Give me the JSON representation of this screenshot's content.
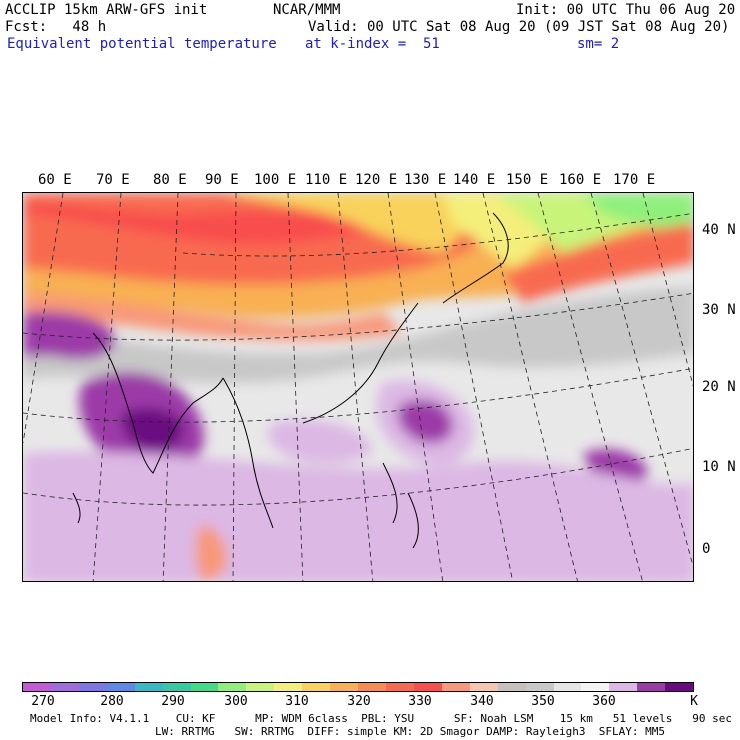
{
  "header": {
    "line1_left": "ACCLIP 15km ARW-GFS init",
    "line1_center": "NCAR/MMM",
    "line1_right": "Init: 00 UTC Thu 06 Aug 20",
    "line2_left": "Fcst:   48 h",
    "line2_right": "Valid: 00 UTC Sat 08 Aug 20 (09 JST Sat 08 Aug 20)",
    "line3_left": "Equivalent potential temperature",
    "line3_center": "at k-index =  51",
    "line3_right": "sm= 2"
  },
  "map": {
    "longitude_labels": [
      "60 E",
      "70 E",
      "80 E",
      "90 E",
      "100 E",
      "110 E",
      "120 E",
      "130 E",
      "140 E",
      "150 E",
      "160 E",
      "170 E"
    ],
    "latitude_labels": [
      "40 N",
      "30 N",
      "20 N",
      "10 N",
      "0"
    ]
  },
  "colorbar": {
    "colors": [
      "#c35ad6",
      "#a06ddc",
      "#7d76e6",
      "#5c8ae8",
      "#37b9c8",
      "#35c9a6",
      "#3fdc8a",
      "#8ef07a",
      "#c8f47a",
      "#f4ef7a",
      "#f8d25a",
      "#f8b052",
      "#f88c50",
      "#f86a50",
      "#f84e4e",
      "#f89878",
      "#f5c7b0",
      "#c8c0ba",
      "#c8c8c8",
      "#e6e6e6",
      "#f4f4f4",
      "#dcb8e4",
      "#9c3aa8",
      "#6a0a80"
    ],
    "tick_labels": [
      "270",
      "280",
      "290",
      "300",
      "310",
      "320",
      "330",
      "340",
      "350",
      "360",
      "K"
    ]
  },
  "footer": {
    "line1": "Model Info: V4.1.1    CU: KF      MP: WDM 6class  PBL: YSU      SF: Noah LSM    15 km   51 levels   90 sec",
    "line2": "LW: RRTMG   SW: RRTMG  DIFF: simple KM: 2D Smagor DAMP: Rayleigh3  SFLAY: MM5"
  }
}
